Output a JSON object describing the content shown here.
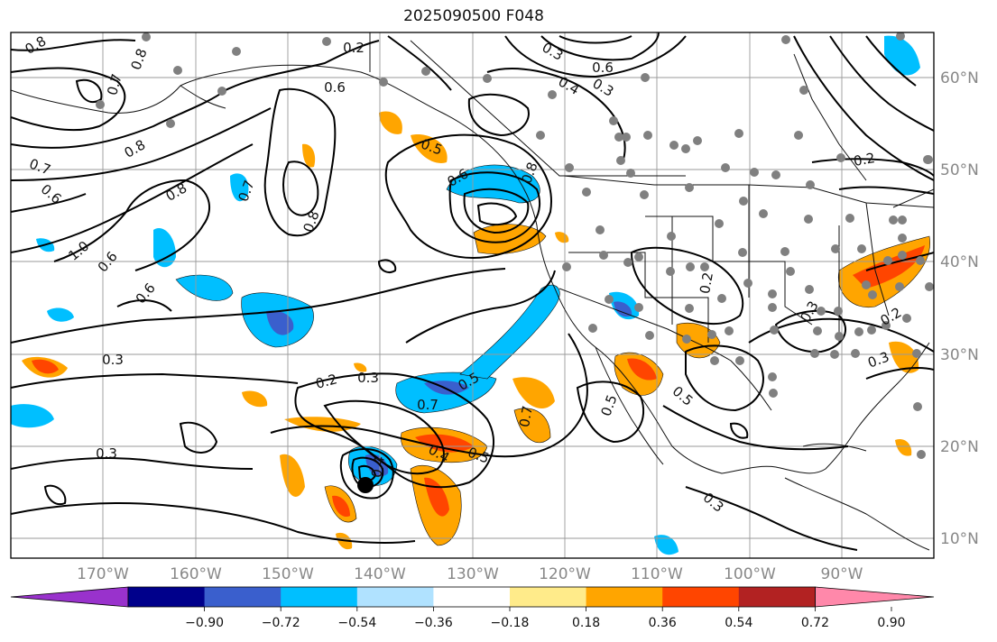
{
  "title": "2025090500 F048",
  "map": {
    "lat_labels": [
      "60°N",
      "50°N",
      "40°N",
      "30°N",
      "20°N",
      "10°N"
    ],
    "lon_labels": [
      "170°W",
      "160°W",
      "150°W",
      "140°W",
      "130°W",
      "120°W",
      "110°W",
      "100°W",
      "90°W"
    ],
    "contour_labels": [
      "0.8",
      "0.7",
      "0.2",
      "0.6",
      "0.3",
      "0.5",
      "0.4",
      "0.5",
      "0.6",
      "0.8",
      "0.8",
      "0.7",
      "0.6",
      "0.8",
      "0.7",
      "0.8",
      "1.0",
      "0.6",
      "0.6",
      "0.3",
      "0.2",
      "0.3",
      "0.5",
      "0.7",
      "0.4",
      "0.6",
      "0.8",
      "0.4",
      "0.3",
      "0.3",
      "0.5",
      "0.2",
      "0.3",
      "0.2",
      "0.3",
      "0.5",
      "0.7",
      "0.3",
      "0.2"
    ],
    "storm_marker": "tropical-cyclone-center"
  },
  "colorbar": {
    "ticks": [
      "−0.90",
      "−0.72",
      "−0.54",
      "−0.36",
      "−0.18",
      "0.18",
      "0.36",
      "0.54",
      "0.72",
      "0.90"
    ],
    "colors": [
      "#9932cc",
      "#00008b",
      "#3a5fcd",
      "#00bfff",
      "#b0e2ff",
      "#ffffff",
      "#ffeb8a",
      "#ffa500",
      "#ff4500",
      "#b22222",
      "#ff88aa"
    ]
  },
  "fills": {
    "blue": "#00bfff",
    "darkblue": "#3a5fcd",
    "orange": "#ffa500",
    "red": "#ff4500"
  },
  "station_color": "#808080"
}
